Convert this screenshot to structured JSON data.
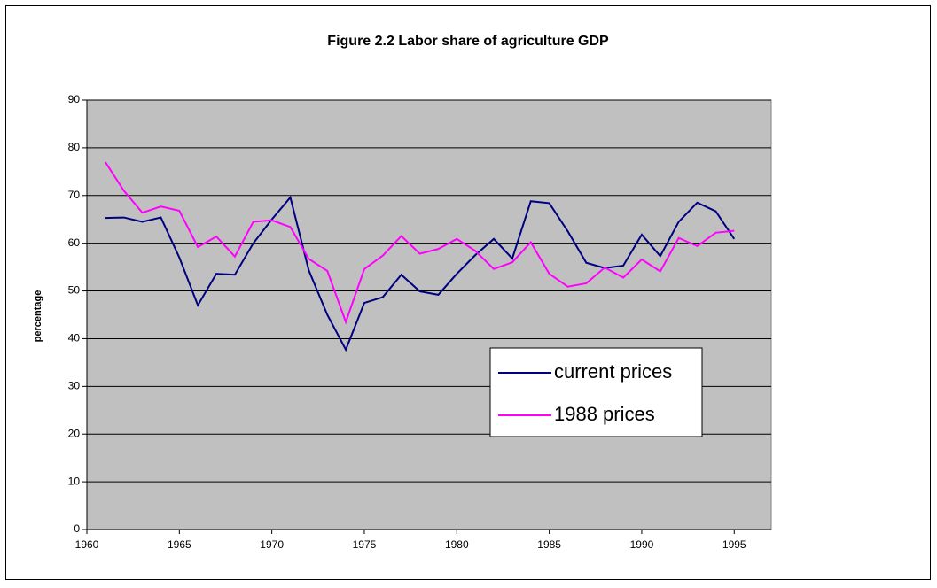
{
  "chart_data": {
    "type": "line",
    "title": "Figure 2.2 Labor share of agriculture GDP",
    "y_label": "percentage",
    "x": [
      1961,
      1962,
      1963,
      1964,
      1965,
      1966,
      1967,
      1968,
      1969,
      1970,
      1971,
      1972,
      1973,
      1974,
      1975,
      1976,
      1977,
      1978,
      1979,
      1980,
      1981,
      1982,
      1983,
      1984,
      1985,
      1986,
      1987,
      1988,
      1989,
      1990,
      1991,
      1992,
      1993,
      1994,
      1995
    ],
    "series": [
      {
        "name": "current prices",
        "color": "#000080",
        "values": [
          65.3,
          65.4,
          64.5,
          65.4,
          57,
          47,
          53.6,
          53.4,
          60,
          65,
          69.6,
          54.3,
          45,
          37.7,
          47.5,
          48.7,
          53.4,
          49.9,
          49.2,
          53.6,
          57.5,
          60.9,
          56.8,
          68.8,
          68.4,
          62.5,
          55.9,
          54.8,
          55.3,
          61.8,
          57.3,
          64.5,
          68.5,
          66.7,
          60.9
        ]
      },
      {
        "name": "1988 prices",
        "color": "#ff00ff",
        "values": [
          77,
          71,
          66.4,
          67.7,
          66.8,
          59.2,
          61.4,
          57.2,
          64.5,
          64.8,
          63.4,
          56.7,
          54.2,
          43.5,
          54.6,
          57.4,
          61.5,
          57.8,
          58.8,
          60.9,
          58.4,
          54.6,
          56,
          60.2,
          53.6,
          50.9,
          51.6,
          54.9,
          52.8,
          56.6,
          54.1,
          61.1,
          59.4,
          62.2,
          62.6
        ]
      }
    ],
    "xlim": [
      1960,
      1997
    ],
    "xticks": [
      1960,
      1965,
      1970,
      1975,
      1980,
      1985,
      1990,
      1995
    ],
    "ylim": [
      0,
      90
    ],
    "yticks": [
      0,
      10,
      20,
      30,
      40,
      50,
      60,
      70,
      80,
      90
    ],
    "grid": true,
    "plot_background": "#c0c0c0"
  }
}
